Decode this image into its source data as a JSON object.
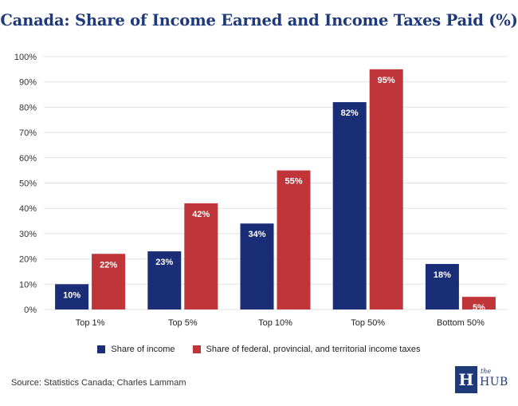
{
  "chart_data": {
    "type": "bar",
    "title": "Canada: Share of Income Earned and Income Taxes Paid (%)",
    "categories": [
      "Top 1%",
      "Top 5%",
      "Top 10%",
      "Top 50%",
      "Bottom 50%"
    ],
    "series": [
      {
        "name": "Share of income",
        "color": "#1a2e78",
        "values": [
          10,
          23,
          34,
          82,
          18
        ]
      },
      {
        "name": "Share of federal, provincial, and territorial income taxes",
        "color": "#c0353a",
        "values": [
          22,
          42,
          55,
          95,
          5
        ]
      }
    ],
    "data_labels": [
      [
        "10%",
        "23%",
        "34%",
        "82%",
        "18%"
      ],
      [
        "22%",
        "42%",
        "55%",
        "95%",
        "5%"
      ]
    ],
    "ylim": [
      0,
      100
    ],
    "yticks": [
      0,
      10,
      20,
      30,
      40,
      50,
      60,
      70,
      80,
      90,
      100
    ],
    "ytick_labels": [
      "0%",
      "10%",
      "20%",
      "30%",
      "40%",
      "50%",
      "60%",
      "70%",
      "80%",
      "90%",
      "100%"
    ],
    "grid": true,
    "legend_position": "bottom"
  },
  "source": "Source: Statistics Canada; Charles Lammam",
  "logo": {
    "mark": "H",
    "the": "the",
    "name": "HUB"
  }
}
